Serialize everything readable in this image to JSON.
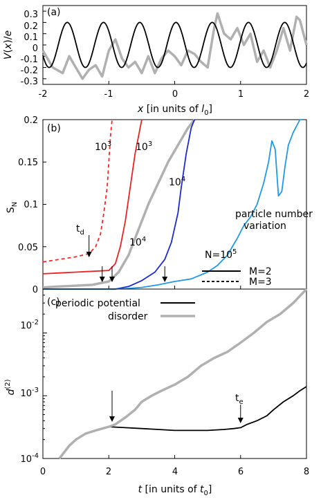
{
  "chart_data": [
    {
      "panel": "(a)",
      "type": "line",
      "xlabel": "x [in units of l0]",
      "ylabel": "V(x)/e",
      "xlim": [
        -2,
        2
      ],
      "ylim": [
        -0.35,
        0.35
      ],
      "xticks": [
        "-2",
        "-1",
        "0",
        "1",
        "2"
      ],
      "yticks": [
        "-0.3",
        "-0.2",
        "-0.1",
        "0",
        "0.1",
        "0.2",
        "0.3"
      ],
      "series": [
        {
          "role": "periodic potential",
          "color": "#000000",
          "amplitude": 0.2,
          "period": 0.55
        },
        {
          "role": "disorder",
          "color": "#b0b0b0",
          "x": [
            -2,
            -1.85,
            -1.7,
            -1.6,
            -1.5,
            -1.4,
            -1.3,
            -1.2,
            -1.1,
            -1.0,
            -0.9,
            -0.8,
            -0.7,
            -0.6,
            -0.5,
            -0.4,
            -0.3,
            -0.2,
            -0.1,
            0.0,
            0.1,
            0.2,
            0.3,
            0.4,
            0.5,
            0.6,
            0.65,
            0.75,
            0.85,
            0.95,
            1.05,
            1.15,
            1.25,
            1.35,
            1.45,
            1.55,
            1.65,
            1.75,
            1.85,
            1.9,
            2.0
          ],
          "y": [
            -0.05,
            -0.2,
            -0.25,
            -0.1,
            -0.2,
            -0.3,
            -0.22,
            -0.18,
            -0.28,
            -0.05,
            0.05,
            -0.12,
            -0.2,
            -0.15,
            -0.25,
            -0.1,
            -0.25,
            -0.12,
            -0.05,
            -0.1,
            -0.18,
            -0.05,
            -0.08,
            -0.15,
            -0.2,
            0.15,
            0.28,
            0.1,
            0.05,
            0.15,
            0.0,
            0.1,
            -0.15,
            -0.05,
            -0.2,
            -0.05,
            0.15,
            -0.05,
            0.25,
            0.22,
            0.0
          ]
        }
      ]
    },
    {
      "panel": "(b)",
      "type": "line",
      "xlabel": "",
      "ylabel": "S_N",
      "xlim": [
        0,
        8
      ],
      "ylim": [
        0,
        0.2
      ],
      "yticks": [
        "0",
        "0.05",
        "0.1",
        "0.15",
        "0.2"
      ],
      "series": [
        {
          "label": "10^3",
          "style": "dashed",
          "color": "#ff2020",
          "x": [
            0,
            0.5,
            1.0,
            1.4,
            1.6,
            1.75,
            1.85,
            1.95,
            2.0,
            2.05,
            2.1
          ],
          "y": [
            0.032,
            0.035,
            0.038,
            0.042,
            0.05,
            0.065,
            0.09,
            0.12,
            0.15,
            0.18,
            0.2
          ]
        },
        {
          "label": "10^3",
          "style": "solid",
          "color": "#ee2020",
          "x": [
            0,
            0.5,
            1.0,
            1.5,
            2.0,
            2.2,
            2.35,
            2.5,
            2.65,
            2.8,
            2.95,
            3.0
          ],
          "y": [
            0.018,
            0.019,
            0.02,
            0.021,
            0.022,
            0.03,
            0.05,
            0.08,
            0.12,
            0.16,
            0.19,
            0.2
          ]
        },
        {
          "label": "M=2",
          "style": "solid",
          "color": "#b0b0b0",
          "x": [
            0,
            0.5,
            1.0,
            1.5,
            2.0,
            2.3,
            2.6,
            2.9,
            3.2,
            3.5,
            3.8,
            4.1,
            4.4,
            4.6
          ],
          "y": [
            0.002,
            0.003,
            0.004,
            0.005,
            0.009,
            0.02,
            0.04,
            0.07,
            0.1,
            0.125,
            0.15,
            0.17,
            0.19,
            0.2
          ]
        },
        {
          "label": "10^4",
          "style": "solid",
          "color": "#1a2ad0",
          "x": [
            0,
            1.5,
            2.2,
            2.6,
            3.0,
            3.4,
            3.7,
            3.9,
            4.1,
            4.2,
            4.35,
            4.5,
            4.6
          ],
          "y": [
            0.0,
            0.0,
            0.0,
            0.003,
            0.01,
            0.02,
            0.035,
            0.055,
            0.09,
            0.12,
            0.16,
            0.19,
            0.2
          ]
        },
        {
          "label": "N=10^5",
          "style": "solid",
          "color": "#1e98e8",
          "x": [
            0,
            2.0,
            2.5,
            3.0,
            3.5,
            4.0,
            4.5,
            5.0,
            5.3,
            5.6,
            5.9,
            6.1,
            6.3,
            6.5,
            6.7,
            6.85,
            6.95,
            7.05,
            7.15,
            7.25,
            7.35,
            7.45,
            7.6,
            7.8,
            7.9
          ],
          "y": [
            0.0,
            0.0,
            0.0005,
            0.002,
            0.005,
            0.009,
            0.012,
            0.02,
            0.028,
            0.04,
            0.06,
            0.075,
            0.085,
            0.1,
            0.125,
            0.15,
            0.175,
            0.165,
            0.11,
            0.115,
            0.145,
            0.17,
            0.185,
            0.2,
            0.2
          ]
        }
      ],
      "annotations": [
        "t_d",
        "10^3",
        "10^3",
        "10^4",
        "10^4",
        "N=10^5",
        "particle number variation"
      ],
      "legend": [
        {
          "label": "M=2",
          "style": "solid"
        },
        {
          "label": "M=3",
          "style": "dashed"
        }
      ],
      "arrows_at_t": [
        1.4,
        1.8,
        2.1,
        3.7
      ]
    },
    {
      "panel": "(c)",
      "type": "line",
      "xlabel": "t [in units of t0]",
      "ylabel": "d^(2)",
      "xlim": [
        0,
        8
      ],
      "ylim": [
        0.0001,
        0.05
      ],
      "yscale": "log",
      "xticks": [
        "0",
        "2",
        "4",
        "6",
        "8"
      ],
      "series": [
        {
          "name": "periodic potential",
          "color": "#000000",
          "x": [
            2.0,
            2.5,
            3.0,
            3.5,
            4.0,
            4.5,
            5.0,
            5.5,
            5.8,
            6.0,
            6.2,
            6.5,
            6.8,
            7.0,
            7.3,
            7.6,
            7.8,
            8.0
          ],
          "y": [
            0.00032,
            0.00031,
            0.0003,
            0.00029,
            0.00028,
            0.00028,
            0.00028,
            0.00029,
            0.0003,
            0.00031,
            0.00035,
            0.0004,
            0.00048,
            0.0006,
            0.0008,
            0.001,
            0.0012,
            0.0014
          ]
        },
        {
          "name": "disorder",
          "color": "#b0b0b0",
          "x": [
            0.5,
            0.8,
            1.0,
            1.3,
            1.6,
            2.0,
            2.2,
            2.5,
            2.8,
            3.0,
            3.3,
            3.6,
            4.0,
            4.4,
            4.8,
            5.2,
            5.6,
            6.0,
            6.4,
            6.8,
            7.2,
            7.6,
            8.0
          ],
          "y": [
            0.0001,
            0.00016,
            0.0002,
            0.00025,
            0.00028,
            0.00032,
            0.00035,
            0.00045,
            0.0006,
            0.0008,
            0.001,
            0.0012,
            0.0015,
            0.002,
            0.003,
            0.004,
            0.005,
            0.007,
            0.01,
            0.015,
            0.02,
            0.03,
            0.05
          ]
        }
      ],
      "annotations": [
        "t_e"
      ],
      "legend": [
        "periodic potential",
        "disorder"
      ],
      "arrows_at_t": [
        2.1,
        6.0
      ]
    }
  ]
}
